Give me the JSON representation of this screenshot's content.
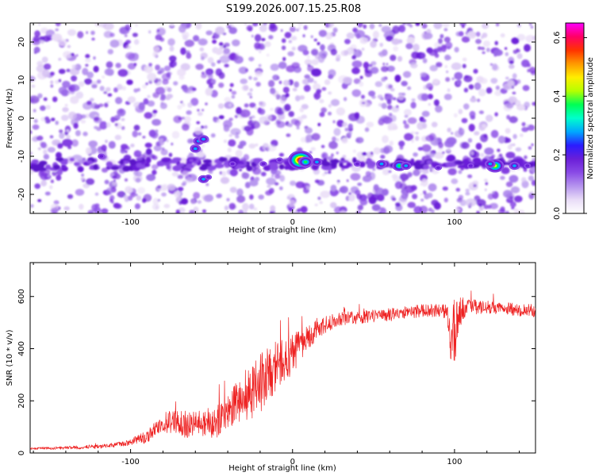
{
  "title": "S199.2026.007.15.25.R08",
  "colors": {
    "line": "#ee2222",
    "frame": "#000000",
    "colormap": [
      "#ffffff",
      "#e9dcf7",
      "#b695ee",
      "#8a4be6",
      "#6a1fd8",
      "#2a1cff",
      "#00a8ff",
      "#00ffcc",
      "#00ff55",
      "#b5ff00",
      "#ffee00",
      "#ff9900",
      "#ff3300",
      "#ff0066",
      "#ff00ff"
    ]
  },
  "chart_data": [
    {
      "type": "heatmap",
      "title": "S199.2026.007.15.25.R08",
      "xlabel": "Height of straight line (km)",
      "ylabel": "Frequency (Hz)",
      "xlim": [
        -162,
        150
      ],
      "ylim": [
        -25,
        25
      ],
      "xticks": [
        -100,
        0,
        100
      ],
      "xtick_labels": [
        "-100",
        "0",
        "100"
      ],
      "yticks": [
        -20,
        -10,
        0,
        10,
        20
      ],
      "ytick_labels": [
        "-20",
        "-10",
        "0",
        "10",
        "20"
      ],
      "colorbar": {
        "label": "Normalized spectral amplitude",
        "range": [
          0,
          0.65
        ],
        "ticks": [
          0.0,
          0.2,
          0.4,
          0.6
        ],
        "tick_labels": [
          "0.0",
          "0.2",
          "0.4",
          "0.6"
        ]
      },
      "ridge": {
        "frequency": -12,
        "from_height": -160,
        "to_height": 150
      },
      "hotspots": [
        {
          "x": -58,
          "y": -6,
          "v": 0.25
        },
        {
          "x": -55,
          "y": -5.5,
          "v": 0.22
        },
        {
          "x": -60,
          "y": -8,
          "v": 0.18
        },
        {
          "x": -55,
          "y": -16,
          "v": 0.18
        },
        {
          "x": -52,
          "y": -15.5,
          "v": 0.15
        },
        {
          "x": -118,
          "y": -10,
          "v": 0.12
        },
        {
          "x": -37,
          "y": -12,
          "v": 0.14
        },
        {
          "x": -18,
          "y": -12,
          "v": 0.13
        },
        {
          "x": -8,
          "y": -11,
          "v": 0.16
        },
        {
          "x": 5,
          "y": -11,
          "v": 0.62
        },
        {
          "x": 8,
          "y": -11.5,
          "v": 0.3
        },
        {
          "x": 15,
          "y": -11.5,
          "v": 0.18
        },
        {
          "x": 40,
          "y": -12,
          "v": 0.14
        },
        {
          "x": 55,
          "y": -12,
          "v": 0.18
        },
        {
          "x": 66,
          "y": -12.5,
          "v": 0.28
        },
        {
          "x": 70,
          "y": -12.5,
          "v": 0.2
        },
        {
          "x": 90,
          "y": -13,
          "v": 0.14
        },
        {
          "x": 110,
          "y": -12.5,
          "v": 0.16
        },
        {
          "x": 125,
          "y": -12.5,
          "v": 0.45
        },
        {
          "x": 122,
          "y": -12,
          "v": 0.25
        },
        {
          "x": 137,
          "y": -12.5,
          "v": 0.22
        },
        {
          "x": 145,
          "y": -12.5,
          "v": 0.16
        }
      ]
    },
    {
      "type": "line",
      "xlabel": "Height of straight line (km)",
      "ylabel": "SNR (10 * v/v)",
      "xlim": [
        -162,
        150
      ],
      "ylim": [
        0,
        730
      ],
      "xticks": [
        -100,
        0,
        100
      ],
      "xtick_labels": [
        "-100",
        "0",
        "100"
      ],
      "yticks": [
        0,
        200,
        400,
        600
      ],
      "ytick_labels": [
        "0",
        "200",
        "400",
        "600"
      ],
      "series": [
        {
          "name": "SNR",
          "x": [
            -162,
            -150,
            -140,
            -130,
            -120,
            -110,
            -100,
            -95,
            -90,
            -85,
            -80,
            -75,
            -70,
            -65,
            -60,
            -55,
            -50,
            -45,
            -40,
            -35,
            -30,
            -25,
            -20,
            -15,
            -10,
            -5,
            0,
            5,
            10,
            15,
            20,
            25,
            30,
            40,
            50,
            60,
            70,
            80,
            90,
            95,
            98,
            100,
            103,
            106,
            110,
            120,
            130,
            140,
            150
          ],
          "values": [
            18,
            18,
            20,
            22,
            25,
            30,
            40,
            55,
            60,
            90,
            110,
            120,
            110,
            105,
            110,
            120,
            110,
            130,
            150,
            190,
            210,
            230,
            260,
            300,
            330,
            360,
            380,
            410,
            440,
            470,
            490,
            505,
            515,
            520,
            525,
            530,
            540,
            545,
            548,
            540,
            420,
            460,
            540,
            560,
            560,
            560,
            555,
            550,
            545
          ],
          "noise_amplitude": [
            5,
            5,
            6,
            7,
            8,
            9,
            12,
            18,
            25,
            35,
            45,
            50,
            55,
            55,
            50,
            55,
            60,
            65,
            70,
            80,
            90,
            110,
            120,
            110,
            100,
            90,
            80,
            60,
            50,
            40,
            35,
            30,
            28,
            25,
            25,
            25,
            25,
            25,
            25,
            30,
            120,
            140,
            60,
            40,
            30,
            25,
            25,
            25,
            25
          ]
        }
      ]
    }
  ]
}
